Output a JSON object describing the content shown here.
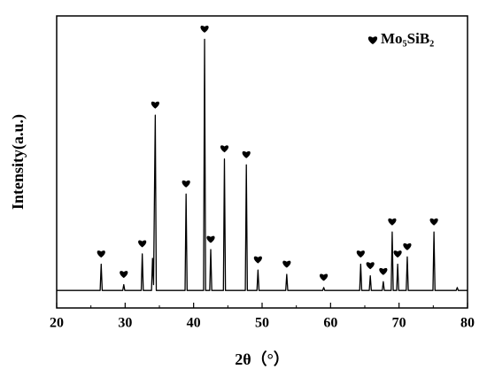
{
  "chart_data": {
    "type": "line",
    "xlabel": "2θ（°）",
    "ylabel": "Intensity(a.u.)",
    "xlim": [
      20,
      80
    ],
    "xticks": [
      20,
      30,
      40,
      50,
      60,
      70,
      80
    ],
    "xminorticks": [
      25,
      35,
      45,
      55,
      65,
      75
    ],
    "ylim": [
      0,
      100
    ],
    "legend": "upper right",
    "series": [
      {
        "name": "Mo₅SiB₂",
        "color": "#000000",
        "x": [
          20,
          26.35,
          26.5,
          26.65,
          29.65,
          29.8,
          29.95,
          32.35,
          32.5,
          32.65,
          33.85,
          34.0,
          34.15,
          34.4,
          34.55,
          38.75,
          38.9,
          39.05,
          41.45,
          41.6,
          41.75,
          42.35,
          42.5,
          42.65,
          44.35,
          44.5,
          44.65,
          47.55,
          47.7,
          47.85,
          49.25,
          49.4,
          49.55,
          53.45,
          53.6,
          53.75,
          58.85,
          59.0,
          59.15,
          64.25,
          64.4,
          64.55,
          65.65,
          65.8,
          65.95,
          67.55,
          67.7,
          67.85,
          68.85,
          69.0,
          69.15,
          69.65,
          69.8,
          69.95,
          71.05,
          71.2,
          71.35,
          74.95,
          75.1,
          75.25,
          78.35,
          78.5,
          78.65,
          80
        ],
        "values": [
          6,
          6,
          15,
          6,
          6,
          8,
          6,
          6,
          18.5,
          6,
          6,
          17,
          8,
          66,
          6,
          6,
          39,
          6,
          6,
          92,
          6,
          6,
          20,
          6,
          6,
          51,
          6,
          6,
          49,
          6,
          6,
          13,
          6,
          6,
          11.5,
          6,
          6,
          7,
          6,
          6,
          15,
          6,
          6,
          11,
          6,
          6,
          9,
          6,
          6,
          26,
          6,
          6,
          15,
          6,
          6,
          17.5,
          6,
          6,
          26,
          6,
          6,
          7,
          6,
          6
        ]
      }
    ],
    "markers": [
      26.5,
      29.8,
      32.5,
      34.4,
      38.9,
      41.6,
      42.5,
      44.5,
      47.7,
      49.4,
      53.6,
      59.0,
      64.4,
      65.8,
      67.7,
      69.0,
      69.8,
      71.2,
      75.1
    ]
  }
}
